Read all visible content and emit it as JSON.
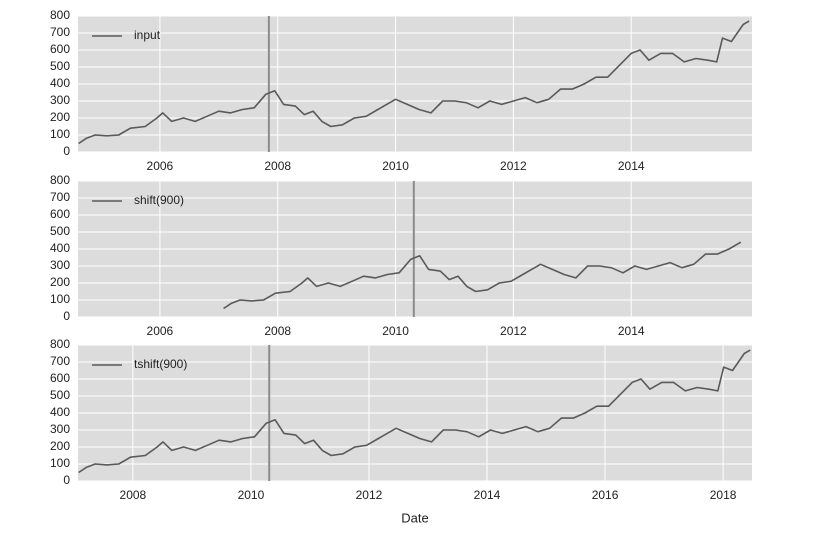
{
  "chart_data": [
    {
      "type": "line",
      "legend": "upper left",
      "grid": true,
      "xlim": [
        2004.61,
        2016.05
      ],
      "xticks": [
        2006,
        2008,
        2010,
        2012,
        2014
      ],
      "ylim": [
        0,
        800
      ],
      "yticks": [
        0,
        100,
        200,
        300,
        400,
        500,
        600,
        700,
        800
      ],
      "vline": 2007.85,
      "vline_color": "#8c8c8c",
      "x": [
        2004.62,
        2004.75,
        2004.9,
        2005.1,
        2005.3,
        2005.5,
        2005.75,
        2005.95,
        2006.05,
        2006.2,
        2006.4,
        2006.6,
        2006.8,
        2007.0,
        2007.2,
        2007.4,
        2007.6,
        2007.8,
        2007.95,
        2008.1,
        2008.3,
        2008.45,
        2008.6,
        2008.75,
        2008.9,
        2009.1,
        2009.3,
        2009.5,
        2009.7,
        2009.9,
        2010.0,
        2010.2,
        2010.4,
        2010.6,
        2010.8,
        2011.0,
        2011.2,
        2011.4,
        2011.6,
        2011.8,
        2012.0,
        2012.2,
        2012.4,
        2012.6,
        2012.8,
        2013.0,
        2013.2,
        2013.4,
        2013.6,
        2013.8,
        2014.0,
        2014.15,
        2014.3,
        2014.5,
        2014.7,
        2014.9,
        2015.1,
        2015.3,
        2015.45,
        2015.55,
        2015.7,
        2015.9,
        2016.0
      ],
      "series": [
        {
          "name": "input",
          "color": "#5a5a5a",
          "values": [
            50,
            80,
            100,
            95,
            100,
            140,
            150,
            200,
            230,
            180,
            200,
            180,
            210,
            240,
            230,
            250,
            260,
            340,
            360,
            280,
            270,
            220,
            240,
            180,
            150,
            160,
            200,
            210,
            250,
            290,
            310,
            280,
            250,
            230,
            300,
            300,
            290,
            260,
            300,
            280,
            300,
            320,
            290,
            310,
            370,
            370,
            400,
            440,
            440,
            510,
            580,
            600,
            540,
            580,
            580,
            530,
            550,
            540,
            530,
            670,
            650,
            750,
            770
          ]
        }
      ]
    },
    {
      "type": "line",
      "legend": "upper left",
      "grid": true,
      "xlim": [
        2004.61,
        2016.05
      ],
      "xticks": [
        2006,
        2008,
        2010,
        2012,
        2014
      ],
      "ylim": [
        0,
        800
      ],
      "yticks": [
        0,
        100,
        200,
        300,
        400,
        500,
        600,
        700,
        800
      ],
      "vline": 2010.31,
      "vline_color": "#8c8c8c",
      "x": [
        2007.08,
        2007.21,
        2007.36,
        2007.56,
        2007.76,
        2007.96,
        2008.21,
        2008.41,
        2008.51,
        2008.66,
        2008.86,
        2009.06,
        2009.26,
        2009.46,
        2009.66,
        2009.86,
        2010.06,
        2010.26,
        2010.41,
        2010.56,
        2010.76,
        2010.91,
        2011.06,
        2011.21,
        2011.36,
        2011.56,
        2011.76,
        2011.96,
        2012.16,
        2012.36,
        2012.46,
        2012.66,
        2012.86,
        2013.06,
        2013.26,
        2013.46,
        2013.66,
        2013.86,
        2014.06,
        2014.26,
        2014.46,
        2014.66,
        2014.86,
        2015.06,
        2015.26,
        2015.46,
        2015.66,
        2015.86
      ],
      "series": [
        {
          "name": "shift(900)",
          "color": "#5a5a5a",
          "values": [
            50,
            80,
            100,
            95,
            100,
            140,
            150,
            200,
            230,
            180,
            200,
            180,
            210,
            240,
            230,
            250,
            260,
            340,
            360,
            280,
            270,
            220,
            240,
            180,
            150,
            160,
            200,
            210,
            250,
            290,
            310,
            280,
            250,
            230,
            300,
            300,
            290,
            260,
            300,
            280,
            300,
            320,
            290,
            310,
            370,
            370,
            400,
            440
          ]
        }
      ]
    },
    {
      "type": "line",
      "legend": "upper left",
      "grid": true,
      "xlabel": "Date",
      "xlim": [
        2007.07,
        2018.49
      ],
      "xticks": [
        2008,
        2010,
        2012,
        2014,
        2016,
        2018
      ],
      "ylim": [
        0,
        800
      ],
      "yticks": [
        0,
        100,
        200,
        300,
        400,
        500,
        600,
        700,
        800
      ],
      "vline": 2010.31,
      "vline_color": "#8c8c8c",
      "x": [
        2007.08,
        2007.21,
        2007.36,
        2007.56,
        2007.76,
        2007.96,
        2008.21,
        2008.41,
        2008.51,
        2008.66,
        2008.86,
        2009.06,
        2009.26,
        2009.46,
        2009.66,
        2009.86,
        2010.06,
        2010.26,
        2010.41,
        2010.56,
        2010.76,
        2010.91,
        2011.06,
        2011.21,
        2011.36,
        2011.56,
        2011.76,
        2011.96,
        2012.16,
        2012.36,
        2012.46,
        2012.66,
        2012.86,
        2013.06,
        2013.26,
        2013.46,
        2013.66,
        2013.86,
        2014.06,
        2014.26,
        2014.46,
        2014.66,
        2014.86,
        2015.06,
        2015.26,
        2015.46,
        2015.66,
        2015.86,
        2016.06,
        2016.26,
        2016.46,
        2016.61,
        2016.76,
        2016.96,
        2017.16,
        2017.36,
        2017.56,
        2017.76,
        2017.91,
        2018.01,
        2018.16,
        2018.36,
        2018.46
      ],
      "series": [
        {
          "name": "tshift(900)",
          "color": "#5a5a5a",
          "values": [
            50,
            80,
            100,
            95,
            100,
            140,
            150,
            200,
            230,
            180,
            200,
            180,
            210,
            240,
            230,
            250,
            260,
            340,
            360,
            280,
            270,
            220,
            240,
            180,
            150,
            160,
            200,
            210,
            250,
            290,
            310,
            280,
            250,
            230,
            300,
            300,
            290,
            260,
            300,
            280,
            300,
            320,
            290,
            310,
            370,
            370,
            400,
            440,
            440,
            510,
            580,
            600,
            540,
            580,
            580,
            530,
            550,
            540,
            530,
            670,
            650,
            750,
            770
          ]
        }
      ]
    }
  ]
}
